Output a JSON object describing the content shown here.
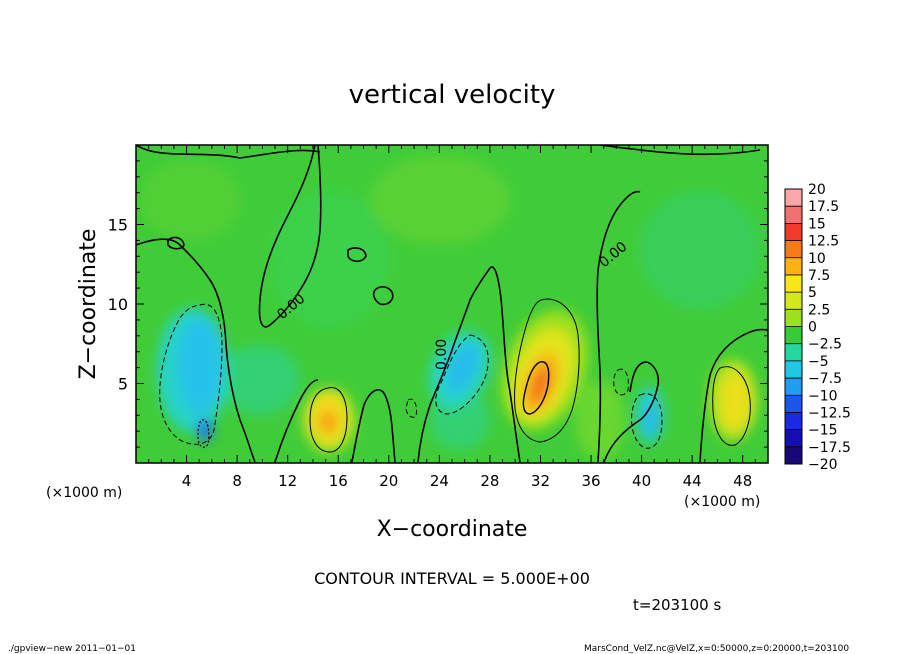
{
  "chart_data": {
    "type": "heatmap",
    "title": "vertical velocity",
    "xlabel": "X−coordinate",
    "ylabel": "Z−coordinate",
    "x_unit_left": "(×1000 m)",
    "x_unit_right": "(×1000 m)",
    "xlim": [
      0,
      50
    ],
    "ylim": [
      0,
      20
    ],
    "x_ticks": [
      4,
      8,
      12,
      16,
      20,
      24,
      28,
      32,
      36,
      40,
      44,
      48
    ],
    "y_ticks": [
      5,
      10,
      15
    ],
    "contour_interval_text": "CONTOUR INTERVAL = 5.000E+00",
    "time_text": "t=203100 s",
    "zero_contour_label": "0.00",
    "colorbar": {
      "levels": [
        "20",
        "17.5",
        "15",
        "12.5",
        "10",
        "7.5",
        "5",
        "2.5",
        "0",
        "−2.5",
        "−5",
        "−7.5",
        "−10",
        "−12.5",
        "−15",
        "−17.5",
        "−20"
      ],
      "colors": [
        "#f9a8a8",
        "#f46f6f",
        "#f03a2a",
        "#f57a1a",
        "#fbb313",
        "#f8e51a",
        "#d3e81b",
        "#9de11d",
        "#35cc36",
        "#22d89f",
        "#22c7e4",
        "#219ef0",
        "#1d57e9",
        "#1a2ae0",
        "#1410b0",
        "#17087a",
        "#7b21a6"
      ]
    },
    "features": [
      {
        "x": 5.0,
        "z": 6.0,
        "value": -7.5
      },
      {
        "x": 5.0,
        "z": 1.5,
        "value": -12.5
      },
      {
        "x": 15.0,
        "z": 2.5,
        "value": 10
      },
      {
        "x": 26.0,
        "z": 6.0,
        "value": -7.5
      },
      {
        "x": 32.0,
        "z": 5.0,
        "value": 12.5
      },
      {
        "x": 40.0,
        "z": 2.5,
        "value": -5
      },
      {
        "x": 47.5,
        "z": 4.0,
        "value": 7.5
      }
    ]
  },
  "footer": {
    "left": "./gpview−new   2011−01−01",
    "right": "MarsCond_VelZ.nc@VelZ,x=0:50000,z=0:20000,t=203100"
  }
}
